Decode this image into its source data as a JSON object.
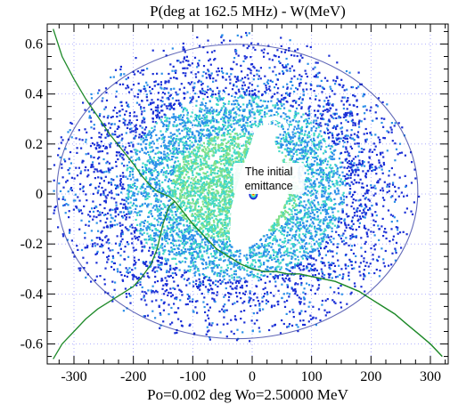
{
  "chart_data": {
    "type": "scatter",
    "title": "P(deg at 162.5 MHz) - W(MeV)",
    "xlabel": "Po=0.002 deg  Wo=2.50000 MeV",
    "ylabel": "",
    "xlim": [
      -345,
      330
    ],
    "ylim": [
      -0.68,
      0.68
    ],
    "xticks": [
      -300,
      -200,
      -100,
      0,
      100,
      200,
      300
    ],
    "yticks": [
      -0.6,
      -0.4,
      -0.2,
      0,
      0.2,
      0.4,
      0.6
    ],
    "grid": true,
    "annotation": {
      "text": [
        "The initial",
        "emittance"
      ],
      "x": 28,
      "y": 0.05
    },
    "initial_emittance": {
      "center": [
        2,
        0.0
      ],
      "half_width_deg": 4,
      "half_height_MeV": 0.012
    },
    "separatrix": {
      "x": [
        -335,
        -320,
        -300,
        -280,
        -260,
        -240,
        -220,
        -200,
        -185,
        -170,
        -160,
        -150,
        -140,
        -130,
        -120,
        -100,
        -80,
        -60,
        -40,
        -20,
        0,
        20,
        40,
        60,
        80,
        100,
        120,
        140,
        160,
        180,
        200,
        220,
        240,
        260,
        280,
        300,
        320
      ],
      "y_upper": [
        0.66,
        0.55,
        0.46,
        0.38,
        0.31,
        0.24,
        0.18,
        0.12,
        0.07,
        0.03,
        0.01,
        0.0,
        -0.01,
        -0.03,
        -0.06,
        -0.12,
        -0.17,
        -0.22,
        -0.25,
        -0.28,
        -0.3,
        -0.31,
        -0.31,
        -0.32,
        -0.32,
        -0.33,
        -0.34,
        -0.35,
        -0.37,
        -0.39,
        -0.42,
        -0.45,
        -0.48,
        -0.52,
        -0.56,
        -0.6,
        -0.65
      ],
      "y_lower": [
        -0.66,
        -0.6,
        -0.55,
        -0.5,
        -0.46,
        -0.43,
        -0.4,
        -0.37,
        -0.33,
        -0.28,
        -0.22,
        -0.12,
        -0.05,
        -0.03,
        -0.06,
        -0.12,
        -0.17,
        -0.22,
        -0.25,
        -0.28,
        -0.3,
        -0.31,
        -0.31,
        -0.32,
        -0.32,
        -0.33,
        -0.34,
        -0.35,
        -0.37,
        -0.39,
        -0.42,
        -0.45,
        -0.48,
        -0.52,
        -0.56,
        -0.6,
        -0.65
      ]
    },
    "particle_cloud": {
      "center": [
        -30,
        0.03
      ],
      "sigma_deg": 130,
      "sigma_MeV": 0.25,
      "max_radius_deg": 310,
      "max_radius_MeV": 0.62
    },
    "hole_polygon": {
      "x": [
        5,
        22,
        40,
        48,
        42,
        36,
        40,
        52,
        62,
        58,
        45,
        30,
        15,
        0,
        -15,
        -30,
        -38,
        -35,
        -20,
        -5
      ],
      "y": [
        0.26,
        0.28,
        0.275,
        0.26,
        0.24,
        0.22,
        0.19,
        0.12,
        0.05,
        -0.02,
        -0.08,
        -0.13,
        -0.17,
        -0.2,
        -0.22,
        -0.22,
        -0.17,
        -0.05,
        0.08,
        0.18
      ]
    },
    "hook": {
      "x": [
        22,
        30,
        40,
        52,
        58
      ],
      "y": [
        0.28,
        0.3,
        0.305,
        0.29,
        0.27
      ]
    },
    "colors": {
      "background": "#ffffff",
      "grid": "#9a9aff",
      "separatrix_green": "#1f8a2a",
      "outer_ellipse": "#1f2a9a",
      "density_low": "#1a2fd6",
      "density_mid": "#2a8fe8",
      "density_high": "#3fd8c8",
      "core_green": "#7fe08a",
      "axis": "#000000"
    }
  }
}
